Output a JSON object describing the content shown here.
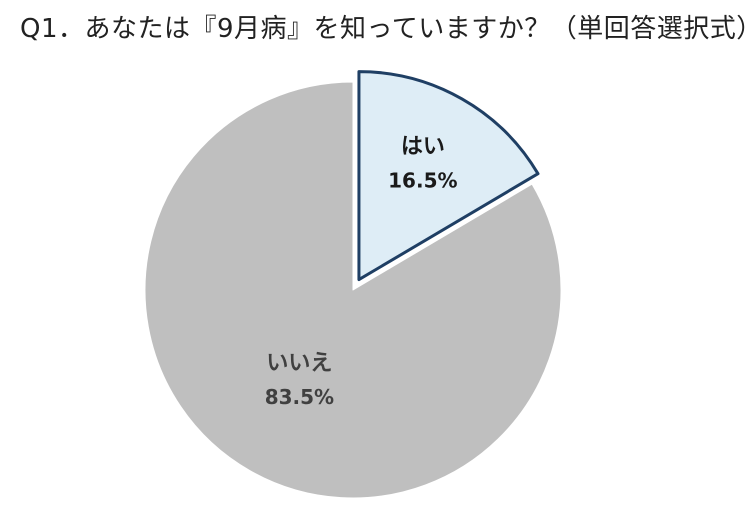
{
  "chart_data": {
    "type": "pie",
    "title": "Q1．あなたは『9月病』を知っていますか？（単回答選択式）",
    "slices": [
      {
        "label": "はい",
        "value": 16.5,
        "display": "16.5%",
        "color": "#deedf6",
        "stroke": "#1f3f64",
        "text_color": "#1a1a1a",
        "exploded": true
      },
      {
        "label": "いいえ",
        "value": 83.5,
        "display": "83.5%",
        "color": "#bfbfbf",
        "stroke": "#ffffff",
        "text_color": "#404040",
        "exploded": false
      }
    ],
    "start_angle_deg": 0,
    "direction": "clockwise",
    "legend": "none"
  }
}
